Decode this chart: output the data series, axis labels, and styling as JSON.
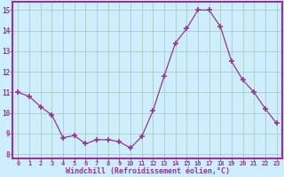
{
  "x": [
    0,
    1,
    2,
    3,
    4,
    5,
    6,
    7,
    8,
    9,
    10,
    11,
    12,
    13,
    14,
    15,
    16,
    17,
    18,
    19,
    20,
    21,
    22,
    23
  ],
  "y": [
    11.0,
    10.8,
    10.3,
    9.9,
    8.8,
    8.9,
    8.5,
    8.7,
    8.7,
    8.6,
    8.3,
    8.85,
    10.1,
    11.8,
    13.4,
    14.1,
    15.0,
    15.0,
    14.2,
    12.5,
    11.6,
    11.0,
    10.2,
    9.5
  ],
  "line_color": "#993399",
  "marker": "+",
  "marker_size": 5,
  "bg_color": "#cceeff",
  "grid_color": "#aaccbb",
  "xlabel": "Windchill (Refroidissement éolien,°C)",
  "xlabel_color": "#993399",
  "tick_color": "#993399",
  "border_color": "#993399",
  "xlim": [
    -0.5,
    23.5
  ],
  "ylim": [
    7.8,
    15.4
  ],
  "yticks": [
    8,
    9,
    10,
    11,
    12,
    13,
    14,
    15
  ],
  "xtick_labels": [
    "0",
    "1",
    "2",
    "3",
    "4",
    "5",
    "6",
    "7",
    "8",
    "9",
    "10",
    "11",
    "12",
    "13",
    "14",
    "15",
    "16",
    "17",
    "18",
    "19",
    "20",
    "21",
    "22",
    "23"
  ]
}
